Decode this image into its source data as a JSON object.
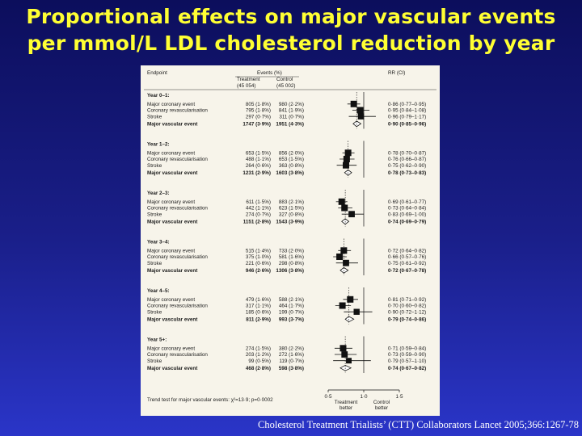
{
  "slide": {
    "title_line1": "Proportional effects on major vascular events",
    "title_line2": "per mmol/L LDL cholesterol reduction by year",
    "citation": "Cholesterol Treatment Trialists’ (CTT) Collaborators  Lancet 2005;366:1267-78"
  },
  "chart_data": {
    "type": "forest",
    "headers": {
      "endpoint": "Endpoint",
      "events": "Events (%)",
      "treatment": "Treatment",
      "treatment_n": "(45 054)",
      "control": "Control",
      "control_n": "(45 002)",
      "rr": "RR (CI)"
    },
    "groups": [
      {
        "label": "Year 0–1:",
        "rows": [
          {
            "endpoint": "Major coronary event",
            "treatment": "805 (1·8%)",
            "control": "980 (2·2%)",
            "rr": 0.86,
            "lo": 0.77,
            "hi": 0.95,
            "rr_text": "0·86 (0·77–0·95)",
            "summary": false
          },
          {
            "endpoint": "Coronary revascularisation",
            "treatment": "795 (1·8%)",
            "control": "841 (1·9%)",
            "rr": 0.95,
            "lo": 0.84,
            "hi": 1.08,
            "rr_text": "0·95 (0·84–1·08)",
            "summary": false
          },
          {
            "endpoint": "Stroke",
            "treatment": "297 (0·7%)",
            "control": "311 (0·7%)",
            "rr": 0.96,
            "lo": 0.79,
            "hi": 1.17,
            "rr_text": "0·96 (0·79–1·17)",
            "summary": false
          },
          {
            "endpoint": "Major vascular event",
            "treatment": "1747 (3·9%)",
            "control": "1951 (4·3%)",
            "rr": 0.9,
            "lo": 0.85,
            "hi": 0.96,
            "rr_text": "0·90 (0·85–0·96)",
            "summary": true
          }
        ]
      },
      {
        "label": "Year 1–2:",
        "rows": [
          {
            "endpoint": "Major coronary event",
            "treatment": "653 (1·5%)",
            "control": "856 (2·0%)",
            "rr": 0.78,
            "lo": 0.7,
            "hi": 0.87,
            "rr_text": "0·78 (0·70–0·87)",
            "summary": false
          },
          {
            "endpoint": "Coronary revascularisation",
            "treatment": "488 (1·1%)",
            "control": "653 (1·5%)",
            "rr": 0.76,
            "lo": 0.66,
            "hi": 0.87,
            "rr_text": "0·76 (0·66–0·87)",
            "summary": false
          },
          {
            "endpoint": "Stroke",
            "treatment": "264 (0·6%)",
            "control": "363 (0·8%)",
            "rr": 0.75,
            "lo": 0.62,
            "hi": 0.9,
            "rr_text": "0·75 (0·62–0·90)",
            "summary": false
          },
          {
            "endpoint": "Major vascular event",
            "treatment": "1231 (2·9%)",
            "control": "1603 (3·8%)",
            "rr": 0.78,
            "lo": 0.73,
            "hi": 0.83,
            "rr_text": "0·78 (0·73–0·83)",
            "summary": true
          }
        ]
      },
      {
        "label": "Year 2–3:",
        "rows": [
          {
            "endpoint": "Major coronary event",
            "treatment": "611 (1·5%)",
            "control": "883 (2·1%)",
            "rr": 0.69,
            "lo": 0.61,
            "hi": 0.77,
            "rr_text": "0·69 (0·61–0·77)",
            "summary": false
          },
          {
            "endpoint": "Coronary revascularisation",
            "treatment": "442 (1·1%)",
            "control": "623 (1·5%)",
            "rr": 0.73,
            "lo": 0.64,
            "hi": 0.84,
            "rr_text": "0·73 (0·64–0·84)",
            "summary": false
          },
          {
            "endpoint": "Stroke",
            "treatment": "274 (0·7%)",
            "control": "327 (0·8%)",
            "rr": 0.83,
            "lo": 0.69,
            "hi": 1.0,
            "rr_text": "0·83 (0·69–1·00)",
            "summary": false
          },
          {
            "endpoint": "Major vascular event",
            "treatment": "1151 (2·8%)",
            "control": "1543 (3·9%)",
            "rr": 0.74,
            "lo": 0.69,
            "hi": 0.79,
            "rr_text": "0·74 (0·69–0·79)",
            "summary": true
          }
        ]
      },
      {
        "label": "Year 3–4:",
        "rows": [
          {
            "endpoint": "Major coronary event",
            "treatment": "515 (1·4%)",
            "control": "733 (2·0%)",
            "rr": 0.72,
            "lo": 0.64,
            "hi": 0.82,
            "rr_text": "0·72 (0·64–0·82)",
            "summary": false
          },
          {
            "endpoint": "Coronary revascularisation",
            "treatment": "375 (1·0%)",
            "control": "581 (1·6%)",
            "rr": 0.66,
            "lo": 0.57,
            "hi": 0.76,
            "rr_text": "0·66 (0·57–0·76)",
            "summary": false
          },
          {
            "endpoint": "Stroke",
            "treatment": "221 (0·6%)",
            "control": "298 (0·8%)",
            "rr": 0.75,
            "lo": 0.61,
            "hi": 0.92,
            "rr_text": "0·75 (0·61–0·92)",
            "summary": false
          },
          {
            "endpoint": "Major vascular event",
            "treatment": "946 (2·6%)",
            "control": "1306 (3·8%)",
            "rr": 0.72,
            "lo": 0.67,
            "hi": 0.78,
            "rr_text": "0·72 (0·67–0·78)",
            "summary": true
          }
        ]
      },
      {
        "label": "Year 4–5:",
        "rows": [
          {
            "endpoint": "Major coronary event",
            "treatment": "479 (1·6%)",
            "control": "588 (2·1%)",
            "rr": 0.81,
            "lo": 0.71,
            "hi": 0.92,
            "rr_text": "0·81 (0·71–0·92)",
            "summary": false
          },
          {
            "endpoint": "Coronary revascularisation",
            "treatment": "317 (1·1%)",
            "control": "464 (1·7%)",
            "rr": 0.7,
            "lo": 0.6,
            "hi": 0.82,
            "rr_text": "0·70 (0·60–0·82)",
            "summary": false
          },
          {
            "endpoint": "Stroke",
            "treatment": "185 (0·6%)",
            "control": "199 (0·7%)",
            "rr": 0.9,
            "lo": 0.72,
            "hi": 1.12,
            "rr_text": "0·90 (0·72–1·12)",
            "summary": false
          },
          {
            "endpoint": "Major vascular event",
            "treatment": "811 (2·9%)",
            "control": "993 (3·7%)",
            "rr": 0.79,
            "lo": 0.74,
            "hi": 0.86,
            "rr_text": "0·79 (0·74–0·86)",
            "summary": true
          }
        ]
      },
      {
        "label": "Year 5+:",
        "rows": [
          {
            "endpoint": "Major coronary event",
            "treatment": "274 (1·5%)",
            "control": "380 (2·2%)",
            "rr": 0.71,
            "lo": 0.59,
            "hi": 0.84,
            "rr_text": "0·71 (0·59–0·84)",
            "summary": false
          },
          {
            "endpoint": "Coronary revascularisation",
            "treatment": "203 (1·2%)",
            "control": "272 (1·6%)",
            "rr": 0.73,
            "lo": 0.59,
            "hi": 0.9,
            "rr_text": "0·73 (0·59–0·90)",
            "summary": false
          },
          {
            "endpoint": "Stroke",
            "treatment": "99 (0·5%)",
            "control": "119 (0·7%)",
            "rr": 0.79,
            "lo": 0.57,
            "hi": 1.1,
            "rr_text": "0·79 (0·57–1·10)",
            "summary": false
          },
          {
            "endpoint": "Major vascular event",
            "treatment": "468 (2·8%)",
            "control": "598 (3·8%)",
            "rr": 0.74,
            "lo": 0.67,
            "hi": 0.82,
            "rr_text": "0·74 (0·67–0·82)",
            "summary": true
          }
        ]
      }
    ],
    "x_axis": {
      "min": 0.5,
      "max": 1.5,
      "ticks": [
        0.5,
        1.0,
        1.5
      ],
      "tick_labels": [
        "0·5",
        "1·0",
        "1·5"
      ],
      "label_left": "Treatment better",
      "label_right": "Control better"
    },
    "trend_test": "Trend test for major vascular events: χ²=13·9; p=0·0002"
  }
}
